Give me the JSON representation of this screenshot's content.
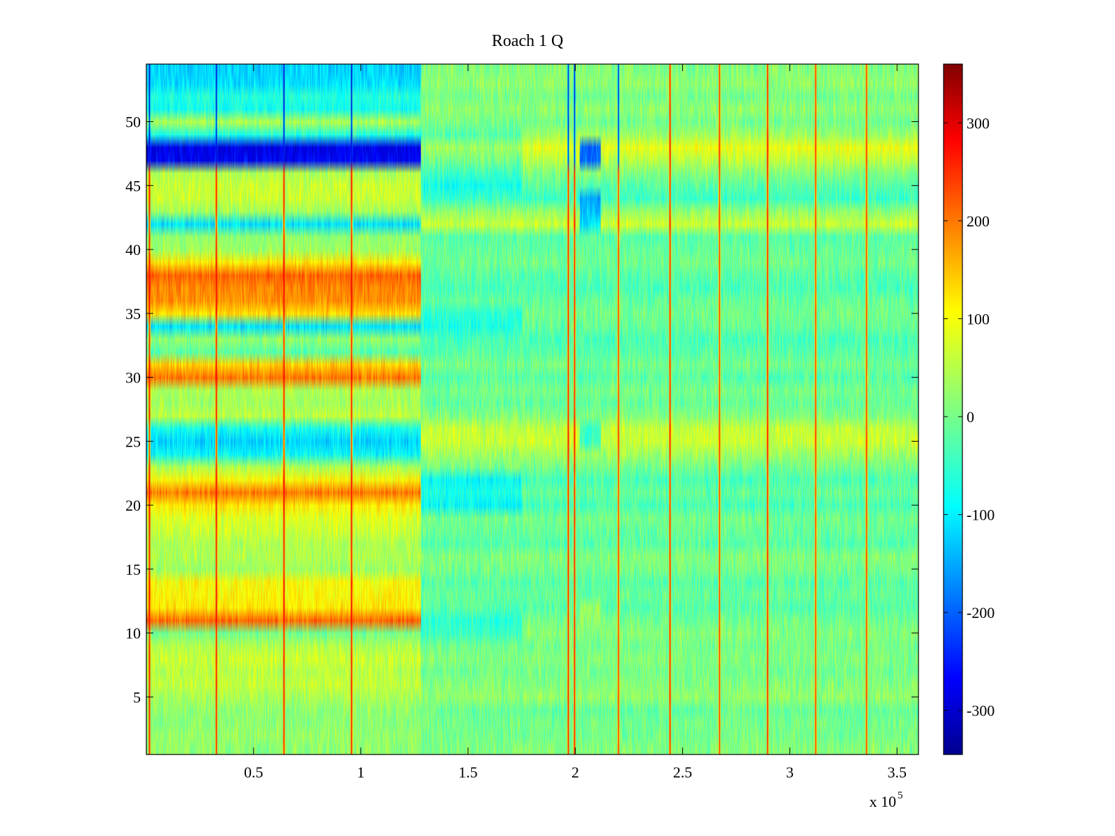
{
  "chart_data": {
    "type": "heatmap",
    "title": "Roach 1 Q",
    "xlabel": "",
    "ylabel": "",
    "x_multiplier_label": "x 10",
    "x_multiplier_exponent": "5",
    "xlim": [
      0,
      3.6
    ],
    "ylim": [
      0.5,
      54.5
    ],
    "rows": 54,
    "x_ticks": [
      0.5,
      1,
      1.5,
      2,
      2.5,
      3,
      3.5
    ],
    "x_tick_labels": [
      "0.5",
      "1",
      "1.5",
      "2",
      "2.5",
      "3",
      "3.5"
    ],
    "y_ticks": [
      5,
      10,
      15,
      20,
      25,
      30,
      35,
      40,
      45,
      50
    ],
    "y_tick_labels": [
      "5",
      "10",
      "15",
      "20",
      "25",
      "30",
      "35",
      "40",
      "45",
      "50"
    ],
    "colorbar": {
      "colormap": "jet",
      "range": [
        -345,
        360
      ],
      "ticks": [
        -300,
        -200,
        -100,
        0,
        100,
        200,
        300
      ],
      "tick_labels": [
        "-300",
        "-200",
        "-100",
        "0",
        "100",
        "200",
        "300"
      ]
    },
    "segment_boundary_x": 1.28,
    "segment1_row_values": {
      "1": 20,
      "2": 25,
      "3": 15,
      "4": 20,
      "5": 35,
      "6": 55,
      "7": 45,
      "8": 60,
      "9": 40,
      "10": 0,
      "11": 200,
      "12": 110,
      "13": 100,
      "14": 95,
      "15": 30,
      "16": 40,
      "17": 40,
      "18": 60,
      "19": 70,
      "20": 110,
      "21": 190,
      "22": 100,
      "23": 40,
      "24": -80,
      "25": -110,
      "26": -70,
      "27": 50,
      "28": 30,
      "29": 40,
      "30": 190,
      "31": 130,
      "32": -20,
      "33": 20,
      "34": -100,
      "35": 120,
      "36": 170,
      "37": 180,
      "38": 200,
      "39": 110,
      "40": 30,
      "41": 20,
      "42": -100,
      "43": 30,
      "44": 60,
      "45": 60,
      "46": 40,
      "47": -260,
      "48": -270,
      "49": -60,
      "50": 40,
      "51": -70,
      "52": -60,
      "53": -100,
      "54": -110
    },
    "segment2_row_values": {
      "1": 10,
      "2": 0,
      "3": 0,
      "4": -10,
      "5": 20,
      "6": 10,
      "7": 0,
      "8": 10,
      "9": 0,
      "10": 10,
      "11": 0,
      "12": -20,
      "13": -10,
      "14": -20,
      "15": 0,
      "16": 10,
      "17": -20,
      "18": -10,
      "19": 0,
      "20": -30,
      "21": -10,
      "22": -30,
      "23": 0,
      "24": 30,
      "25": 60,
      "26": 55,
      "27": 10,
      "28": -10,
      "29": 0,
      "30": -20,
      "31": 0,
      "32": -20,
      "33": -30,
      "34": -10,
      "35": 0,
      "36": -10,
      "37": -30,
      "38": -20,
      "39": 0,
      "40": -10,
      "41": -20,
      "42": 60,
      "43": 20,
      "44": -40,
      "45": -20,
      "46": 10,
      "47": 50,
      "48": 80,
      "49": 30,
      "50": 0,
      "51": 20,
      "52": 0,
      "53": 20,
      "54": 10
    },
    "seg2_cold_patch": {
      "x_range": [
        1.28,
        1.75
      ],
      "rows": [
        45,
        46,
        47,
        48,
        49,
        34,
        35,
        20,
        21,
        22,
        10,
        11
      ],
      "offset": -50
    },
    "patch_region": {
      "x_range": [
        2.02,
        2.12
      ],
      "row_values": {
        "42": -100,
        "43": -120,
        "44": -140,
        "47": -180,
        "48": -190,
        "11": 20,
        "12": 30,
        "25": -40,
        "26": -40
      }
    },
    "event_columns": [
      {
        "x": 0.012,
        "strength": 1.0
      },
      {
        "x": 0.325,
        "strength": 1.0
      },
      {
        "x": 0.64,
        "strength": 1.0
      },
      {
        "x": 0.955,
        "strength": 1.0
      },
      {
        "x": 1.965,
        "strength": 1.0
      },
      {
        "x": 1.995,
        "strength": 1.0
      },
      {
        "x": 2.2,
        "strength": 0.9
      },
      {
        "x": 2.44,
        "strength": 1.0
      },
      {
        "x": 2.67,
        "strength": 0.9
      },
      {
        "x": 2.895,
        "strength": 1.0
      },
      {
        "x": 3.12,
        "strength": 0.9
      },
      {
        "x": 3.355,
        "strength": 0.9
      }
    ],
    "noise_amplitude": 35,
    "grid": false,
    "legend": "none"
  }
}
